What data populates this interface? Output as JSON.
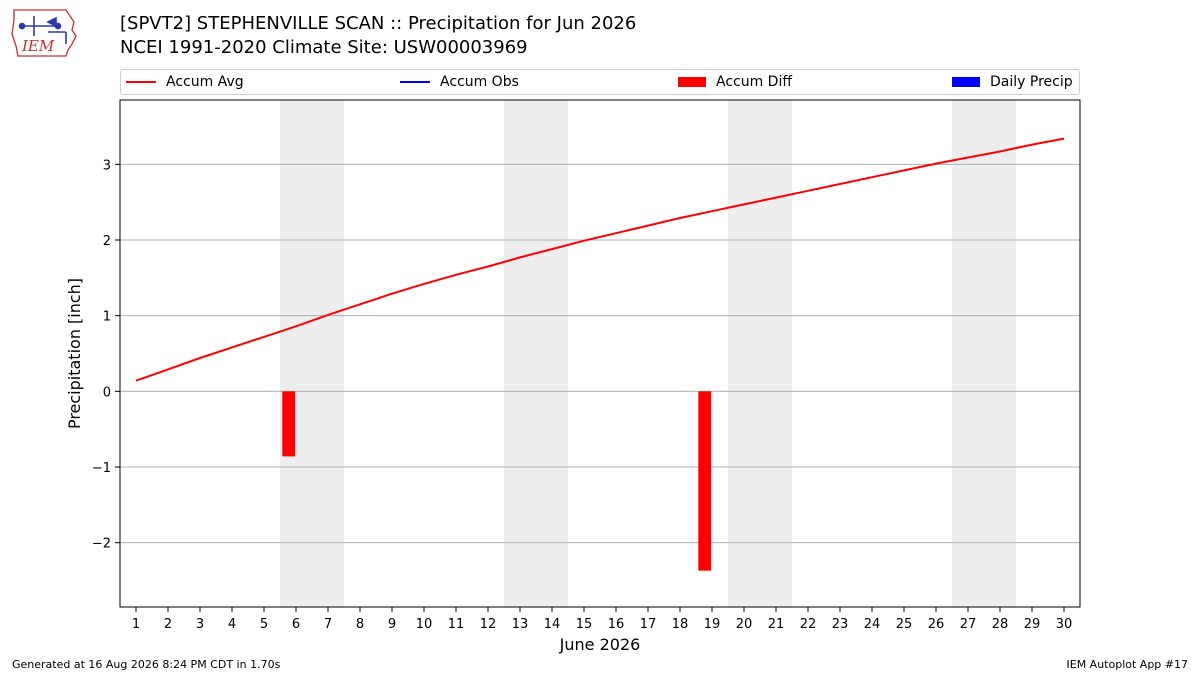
{
  "header": {
    "title_line1": "[SPVT2] STEPHENVILLE SCAN :: Precipitation for Jun 2026",
    "title_line2": "NCEI 1991-2020 Climate Site: USW00003969",
    "logo_text": "IEM"
  },
  "legend": {
    "items": [
      {
        "label": "Accum Avg",
        "color": "#ff0000",
        "kind": "line"
      },
      {
        "label": "Accum Obs",
        "color": "#0000ff",
        "kind": "line"
      },
      {
        "label": "Accum Diff",
        "color": "#ff0000",
        "kind": "box"
      },
      {
        "label": "Daily Precip",
        "color": "#0000ff",
        "kind": "box"
      }
    ],
    "placement": "top"
  },
  "footer": {
    "left": "Generated at 16 Aug 2026 8:24 PM CDT in 1.70s",
    "right": "IEM Autoplot App #17"
  },
  "chart_data": {
    "type": "line",
    "title": "[SPVT2] STEPHENVILLE SCAN :: Precipitation for Jun 2026",
    "subtitle": "NCEI 1991-2020 Climate Site: USW00003969",
    "xlabel": "June 2026",
    "ylabel": "Precipitation [inch]",
    "x": [
      1,
      2,
      3,
      4,
      5,
      6,
      7,
      8,
      9,
      10,
      11,
      12,
      13,
      14,
      15,
      16,
      17,
      18,
      19,
      20,
      21,
      22,
      23,
      24,
      25,
      26,
      27,
      28,
      29,
      30
    ],
    "xlim": [
      0.5,
      30.5
    ],
    "ylim": [
      -2.85,
      3.85
    ],
    "yticks": [
      3,
      2,
      1,
      0,
      -1,
      -2
    ],
    "ytick_labels": [
      "3",
      "2",
      "1",
      "0",
      "−1",
      "−2"
    ],
    "grid": "horizontal",
    "weekend_days": [
      6,
      7,
      13,
      14,
      20,
      21,
      27,
      28
    ],
    "weekend_shading_color": "#eeeeee",
    "series": [
      {
        "name": "Accum Avg",
        "type": "line",
        "color": "#ff0000",
        "values": [
          0.14,
          0.29,
          0.44,
          0.58,
          0.72,
          0.86,
          1.01,
          1.15,
          1.29,
          1.42,
          1.54,
          1.65,
          1.77,
          1.88,
          1.99,
          2.09,
          2.19,
          2.29,
          2.38,
          2.47,
          2.56,
          2.65,
          2.74,
          2.83,
          2.92,
          3.01,
          3.09,
          3.17,
          3.26,
          3.34
        ]
      },
      {
        "name": "Accum Diff",
        "type": "bar",
        "color": "#ff0000",
        "points": [
          {
            "x": 6,
            "value": -0.86
          },
          {
            "x": 19,
            "value": -2.37
          }
        ]
      }
    ]
  }
}
